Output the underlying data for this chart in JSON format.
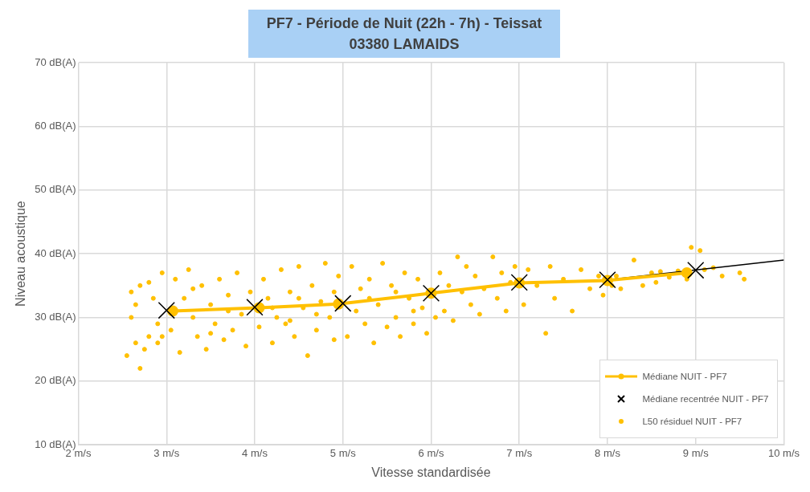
{
  "chart_data": {
    "type": "scatter",
    "title": "PF7 - Période de Nuit (22h - 7h) - Teissat",
    "subtitle": "03380 LAMAIDS",
    "xlabel": "Vitesse standardisée",
    "ylabel": "Niveau acoustique",
    "xlim": [
      2,
      10
    ],
    "xticks": [
      {
        "value": 2,
        "label": "2 m/s"
      },
      {
        "value": 3,
        "label": "3 m/s"
      },
      {
        "value": 4,
        "label": "4 m/s"
      },
      {
        "value": 5,
        "label": "5 m/s"
      },
      {
        "value": 6,
        "label": "6 m/s"
      },
      {
        "value": 7,
        "label": "7 m/s"
      },
      {
        "value": 8,
        "label": "8 m/s"
      },
      {
        "value": 9,
        "label": "9 m/s"
      },
      {
        "value": 10,
        "label": "10 m/s"
      }
    ],
    "ylim": [
      10,
      70
    ],
    "yticks": [
      {
        "value": 10,
        "label": "10 dB(A)"
      },
      {
        "value": 20,
        "label": "20 dB(A)"
      },
      {
        "value": 30,
        "label": "30 dB(A)"
      },
      {
        "value": 40,
        "label": "40 dB(A)"
      },
      {
        "value": 50,
        "label": "50 dB(A)"
      },
      {
        "value": 60,
        "label": "60 dB(A)"
      },
      {
        "value": 70,
        "label": "70 dB(A)"
      }
    ],
    "grid": true,
    "legend": "bottom right",
    "series": [
      {
        "name": "Médiane NUIT - PF7",
        "type": "line",
        "color": "#ffc000",
        "marker": "circle",
        "line_style": "solid",
        "x": [
          3.07,
          4.05,
          4.95,
          6.0,
          7.0,
          8.0,
          8.9
        ],
        "values": [
          31.0,
          31.5,
          32.1,
          33.8,
          35.4,
          35.8,
          37.0
        ]
      },
      {
        "name": "Médiane recentrée NUIT - PF7",
        "type": "scatter",
        "color": "#000000",
        "marker": "cross",
        "x": [
          3,
          4,
          5,
          6,
          7,
          8,
          9
        ],
        "values": [
          31.1,
          31.6,
          32.2,
          33.8,
          35.5,
          35.9,
          37.4
        ]
      },
      {
        "name": "L50 résiduel NUIT - PF7",
        "type": "scatter",
        "color": "#ffc000",
        "marker": "circle",
        "x": [
          2.55,
          2.6,
          2.65,
          2.7,
          2.75,
          2.8,
          2.85,
          2.9,
          2.95,
          2.6,
          2.7,
          2.8,
          2.9,
          2.95,
          2.65,
          3.05,
          3.1,
          3.15,
          3.2,
          3.25,
          3.3,
          3.35,
          3.4,
          3.45,
          3.5,
          3.55,
          3.6,
          3.65,
          3.7,
          3.75,
          3.8,
          3.85,
          3.9,
          3.95,
          3.5,
          3.3,
          3.7,
          4.05,
          4.1,
          4.15,
          4.2,
          4.25,
          4.3,
          4.35,
          4.4,
          4.45,
          4.5,
          4.55,
          4.6,
          4.65,
          4.7,
          4.75,
          4.8,
          4.85,
          4.9,
          4.95,
          4.5,
          4.2,
          4.7,
          4.9,
          4.4,
          5.05,
          5.1,
          5.15,
          5.2,
          5.25,
          5.3,
          5.35,
          5.4,
          5.45,
          5.5,
          5.55,
          5.6,
          5.65,
          5.7,
          5.75,
          5.8,
          5.85,
          5.9,
          5.95,
          5.3,
          5.6,
          5.8,
          6.05,
          6.1,
          6.15,
          6.2,
          6.25,
          6.3,
          6.35,
          6.4,
          6.45,
          6.5,
          6.55,
          6.6,
          6.7,
          6.75,
          6.8,
          6.85,
          6.9,
          6.95,
          7.05,
          7.1,
          7.2,
          7.3,
          7.35,
          7.4,
          7.5,
          7.6,
          7.7,
          7.8,
          7.9,
          7.95,
          8.05,
          8.1,
          8.15,
          8.3,
          8.4,
          8.5,
          8.55,
          8.6,
          8.7,
          8.8,
          8.95,
          9.05,
          8.9,
          9.1,
          9.3,
          9.5,
          9.55,
          9.2
        ],
        "values": [
          24,
          34,
          26,
          22,
          25,
          27,
          33,
          29,
          27,
          30,
          35,
          35.5,
          26,
          37,
          32,
          28,
          36,
          24.5,
          33,
          37.5,
          30,
          27,
          35,
          25,
          32,
          29,
          36,
          26.5,
          33.5,
          28,
          37,
          30.5,
          25.5,
          34,
          27.5,
          34.5,
          31,
          28.5,
          36,
          33,
          26,
          30,
          37.5,
          29,
          34,
          27,
          38,
          31.5,
          24,
          35,
          28,
          32.5,
          38.5,
          30,
          26.5,
          36.5,
          33,
          31.5,
          30.5,
          34,
          29.5,
          27,
          38,
          31,
          34.5,
          29,
          36,
          26,
          32,
          38.5,
          28.5,
          35,
          30,
          27,
          37,
          33,
          29,
          36,
          31.5,
          27.5,
          33,
          34,
          31,
          30,
          37,
          31,
          35,
          29.5,
          39.5,
          34,
          38,
          32,
          36.5,
          30.5,
          34.5,
          39.5,
          33,
          37,
          31,
          35.5,
          38,
          32,
          37.5,
          35,
          27.5,
          38,
          33,
          36,
          31,
          37.5,
          34.5,
          36.5,
          33.5,
          35,
          36.5,
          34.5,
          39,
          35,
          37,
          35.5,
          37.2,
          36.3,
          37.3,
          41,
          40.5,
          36,
          37.5,
          36.5,
          37,
          36,
          37.8
        ]
      },
      {
        "type": "line",
        "color": "#000000",
        "marker": "none",
        "line_style": "solid",
        "x": [
          8,
          10
        ],
        "values": [
          35.9,
          39.0
        ]
      }
    ]
  }
}
